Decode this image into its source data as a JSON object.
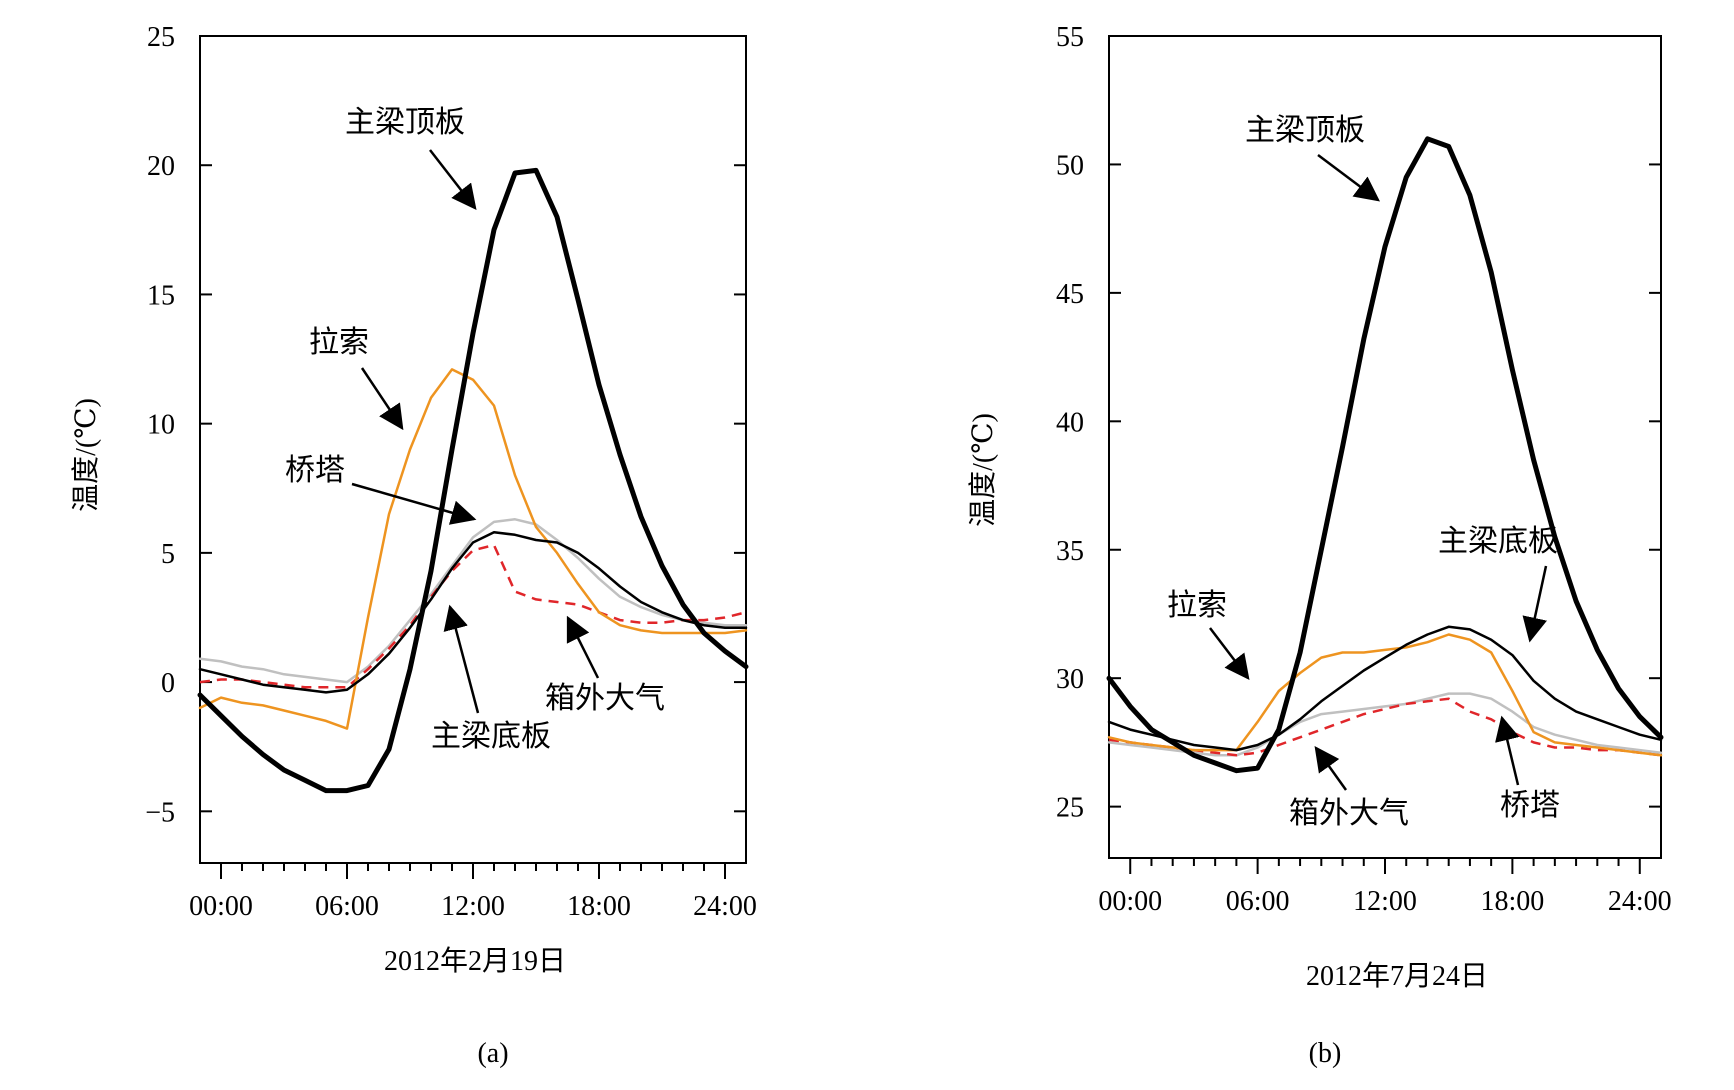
{
  "colors": {
    "beam_top": "#000000",
    "beam_bottom": "#000000",
    "cable": "#ee9420",
    "tower": "#c0c0c0",
    "ambient": "#e0262a"
  },
  "chart_data": [
    {
      "type": "line",
      "panel_label": "(a)",
      "xlabel": "2012年2月19日",
      "ylabel": "温度/(℃)",
      "xlim": [
        -1,
        25
      ],
      "ylim": [
        -7,
        25
      ],
      "x_ticks": [
        0,
        6,
        12,
        18,
        24
      ],
      "x_tick_labels": [
        "00:00",
        "06:00",
        "12:00",
        "18:00",
        "24:00"
      ],
      "y_ticks": [
        -5,
        0,
        5,
        10,
        15,
        20,
        25
      ],
      "y_tick_labels": [
        "−5",
        "0",
        "5",
        "10",
        "15",
        "20",
        "25"
      ],
      "series": [
        {
          "name": "主梁顶板",
          "style": "bold",
          "color": "#000000",
          "x": [
            -1,
            0,
            1,
            2,
            3,
            4,
            5,
            6,
            7,
            8,
            9,
            10,
            11,
            12,
            13,
            14,
            15,
            16,
            17,
            18,
            19,
            20,
            21,
            22,
            23,
            24,
            25
          ],
          "values": [
            -0.5,
            -1.3,
            -2.1,
            -2.8,
            -3.4,
            -3.8,
            -4.2,
            -4.2,
            -4.0,
            -2.6,
            0.5,
            4.3,
            9.0,
            13.5,
            17.5,
            19.7,
            19.8,
            18.0,
            14.8,
            11.5,
            8.8,
            6.4,
            4.5,
            3.0,
            1.9,
            1.2,
            0.6
          ]
        },
        {
          "name": "主梁底板",
          "style": "thin",
          "color": "#000000",
          "x": [
            -1,
            0,
            1,
            2,
            3,
            4,
            5,
            6,
            7,
            8,
            9,
            10,
            11,
            12,
            13,
            14,
            15,
            16,
            17,
            18,
            19,
            20,
            21,
            22,
            23,
            24,
            25
          ],
          "values": [
            0.5,
            0.3,
            0.1,
            -0.1,
            -0.2,
            -0.3,
            -0.4,
            -0.3,
            0.3,
            1.1,
            2.1,
            3.2,
            4.4,
            5.4,
            5.8,
            5.7,
            5.5,
            5.4,
            5.0,
            4.4,
            3.7,
            3.1,
            2.7,
            2.4,
            2.2,
            2.1,
            2.1
          ]
        },
        {
          "name": "拉索",
          "style": "solid",
          "color": "#ee9420",
          "x": [
            -1,
            0,
            1,
            2,
            3,
            4,
            5,
            6,
            7,
            8,
            9,
            10,
            11,
            12,
            13,
            14,
            15,
            16,
            17,
            18,
            19,
            20,
            21,
            22,
            23,
            24,
            25
          ],
          "values": [
            -1.0,
            -0.6,
            -0.8,
            -0.9,
            -1.1,
            -1.3,
            -1.5,
            -1.8,
            2.5,
            6.5,
            9.0,
            11.0,
            12.1,
            11.7,
            10.7,
            8.0,
            6.0,
            5.0,
            3.8,
            2.7,
            2.2,
            2.0,
            1.9,
            1.9,
            1.9,
            1.9,
            2.0
          ]
        },
        {
          "name": "桥塔",
          "style": "solid",
          "color": "#c0c0c0",
          "x": [
            -1,
            0,
            1,
            2,
            3,
            4,
            5,
            6,
            7,
            8,
            9,
            10,
            11,
            12,
            13,
            14,
            15,
            16,
            17,
            18,
            19,
            20,
            21,
            22,
            23,
            24,
            25
          ],
          "values": [
            0.9,
            0.8,
            0.6,
            0.5,
            0.3,
            0.2,
            0.1,
            0.0,
            0.6,
            1.4,
            2.4,
            3.4,
            4.5,
            5.6,
            6.2,
            6.3,
            6.1,
            5.5,
            4.8,
            4.0,
            3.3,
            2.9,
            2.6,
            2.4,
            2.3,
            2.2,
            2.2
          ]
        },
        {
          "name": "箱外大气",
          "style": "dashed",
          "color": "#e0262a",
          "x": [
            -1,
            0,
            1,
            2,
            3,
            4,
            5,
            6,
            7,
            8,
            9,
            10,
            11,
            12,
            13,
            14,
            15,
            16,
            17,
            18,
            19,
            20,
            21,
            22,
            23,
            24,
            25
          ],
          "values": [
            0.0,
            0.1,
            0.1,
            0.0,
            -0.1,
            -0.2,
            -0.2,
            -0.2,
            0.5,
            1.3,
            2.2,
            3.3,
            4.3,
            5.1,
            5.3,
            3.5,
            3.2,
            3.1,
            3.0,
            2.7,
            2.4,
            2.3,
            2.3,
            2.4,
            2.4,
            2.5,
            2.7
          ]
        }
      ],
      "annotations": [
        {
          "text": "主梁顶板",
          "target": "主梁顶板"
        },
        {
          "text": "拉索",
          "target": "拉索"
        },
        {
          "text": "桥塔",
          "target": "桥塔"
        },
        {
          "text": "箱外大气",
          "target": "箱外大气"
        },
        {
          "text": "主梁底板",
          "target": "主梁底板"
        }
      ]
    },
    {
      "type": "line",
      "panel_label": "(b)",
      "xlabel": "2012年7月24日",
      "ylabel": "温度/(℃)",
      "xlim": [
        -1,
        25
      ],
      "ylim": [
        23,
        55
      ],
      "x_ticks": [
        0,
        6,
        12,
        18,
        24
      ],
      "x_tick_labels": [
        "00:00",
        "06:00",
        "12:00",
        "18:00",
        "24:00"
      ],
      "y_ticks": [
        25,
        30,
        35,
        40,
        45,
        50,
        55
      ],
      "y_tick_labels": [
        "25",
        "30",
        "35",
        "40",
        "45",
        "50",
        "55"
      ],
      "series": [
        {
          "name": "主梁顶板",
          "style": "bold",
          "color": "#000000",
          "x": [
            -1,
            0,
            1,
            2,
            3,
            4,
            5,
            6,
            7,
            8,
            9,
            10,
            11,
            12,
            13,
            14,
            15,
            16,
            17,
            18,
            19,
            20,
            21,
            22,
            23,
            24,
            25
          ],
          "values": [
            30.0,
            28.9,
            28.0,
            27.5,
            27.0,
            26.7,
            26.4,
            26.5,
            28.0,
            31.0,
            35.0,
            39.0,
            43.2,
            46.8,
            49.5,
            51.0,
            50.7,
            48.8,
            45.8,
            42.0,
            38.5,
            35.5,
            33.0,
            31.1,
            29.6,
            28.5,
            27.7
          ]
        },
        {
          "name": "主梁底板",
          "style": "thin",
          "color": "#000000",
          "x": [
            -1,
            0,
            1,
            2,
            3,
            4,
            5,
            6,
            7,
            8,
            9,
            10,
            11,
            12,
            13,
            14,
            15,
            16,
            17,
            18,
            19,
            20,
            21,
            22,
            23,
            24,
            25
          ],
          "values": [
            28.3,
            28.0,
            27.8,
            27.6,
            27.4,
            27.3,
            27.2,
            27.4,
            27.8,
            28.4,
            29.1,
            29.7,
            30.3,
            30.8,
            31.3,
            31.7,
            32.0,
            31.9,
            31.5,
            30.9,
            29.9,
            29.2,
            28.7,
            28.4,
            28.1,
            27.8,
            27.6
          ]
        },
        {
          "name": "拉索",
          "style": "solid",
          "color": "#ee9420",
          "x": [
            -1,
            0,
            1,
            2,
            3,
            4,
            5,
            6,
            7,
            8,
            9,
            10,
            11,
            12,
            13,
            14,
            15,
            16,
            17,
            18,
            19,
            20,
            21,
            22,
            23,
            24,
            25
          ],
          "values": [
            27.7,
            27.5,
            27.4,
            27.3,
            27.2,
            27.2,
            27.2,
            28.3,
            29.5,
            30.2,
            30.8,
            31.0,
            31.0,
            31.1,
            31.2,
            31.4,
            31.7,
            31.5,
            31.0,
            29.5,
            27.9,
            27.5,
            27.4,
            27.3,
            27.2,
            27.1,
            27.0
          ]
        },
        {
          "name": "桥塔",
          "style": "solid",
          "color": "#c0c0c0",
          "x": [
            -1,
            0,
            1,
            2,
            3,
            4,
            5,
            6,
            7,
            8,
            9,
            10,
            11,
            12,
            13,
            14,
            15,
            16,
            17,
            18,
            19,
            20,
            21,
            22,
            23,
            24,
            25
          ],
          "values": [
            27.5,
            27.4,
            27.3,
            27.2,
            27.1,
            27.0,
            27.0,
            27.3,
            27.8,
            28.3,
            28.6,
            28.7,
            28.8,
            28.9,
            29.0,
            29.2,
            29.4,
            29.4,
            29.2,
            28.7,
            28.1,
            27.8,
            27.6,
            27.4,
            27.3,
            27.2,
            27.1
          ]
        },
        {
          "name": "箱外大气",
          "style": "dashed",
          "color": "#e0262a",
          "x": [
            -1,
            0,
            1,
            2,
            3,
            4,
            5,
            6,
            7,
            8,
            9,
            10,
            11,
            12,
            13,
            14,
            15,
            16,
            17,
            18,
            19,
            20,
            21,
            22,
            23,
            24,
            25
          ],
          "values": [
            27.6,
            27.5,
            27.4,
            27.3,
            27.2,
            27.1,
            27.0,
            27.1,
            27.4,
            27.7,
            28.0,
            28.3,
            28.6,
            28.8,
            29.0,
            29.1,
            29.2,
            28.7,
            28.4,
            27.9,
            27.5,
            27.3,
            27.3,
            27.2,
            27.2,
            27.1,
            27.0
          ]
        }
      ],
      "annotations": [
        {
          "text": "主梁顶板",
          "target": "主梁顶板"
        },
        {
          "text": "主梁底板",
          "target": "主梁底板"
        },
        {
          "text": "拉索",
          "target": "拉索"
        },
        {
          "text": "箱外大气",
          "target": "箱外大气"
        },
        {
          "text": "桥塔",
          "target": "桥塔"
        }
      ]
    }
  ]
}
